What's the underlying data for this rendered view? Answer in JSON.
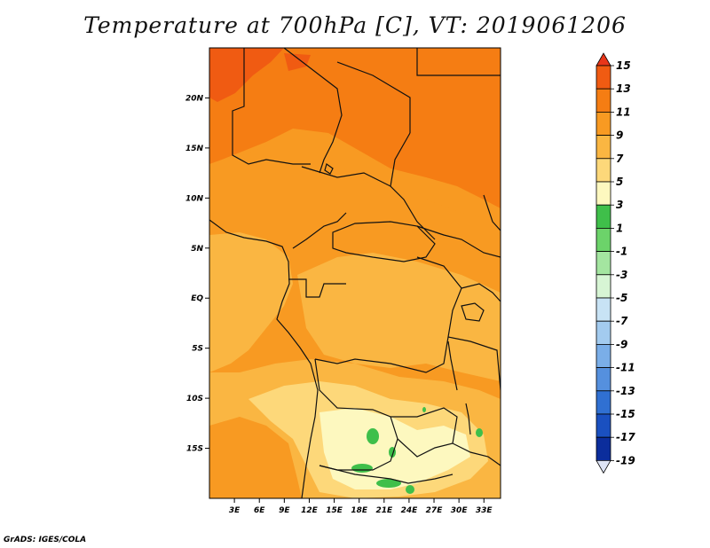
{
  "title": "Temperature at 700hPa [C], VT: 2019061206",
  "footer": "GrADS: IGES/COLA",
  "map": {
    "lon_range": [
      0,
      35
    ],
    "lat_range": [
      -20,
      25
    ],
    "lon_ticks": [
      "3E",
      "6E",
      "9E",
      "12E",
      "15E",
      "18E",
      "21E",
      "24E",
      "27E",
      "30E",
      "33E"
    ],
    "lat_ticks": [
      "20N",
      "15N",
      "10N",
      "5N",
      "EQ",
      "5S",
      "10S",
      "15S"
    ]
  },
  "colorbar": {
    "levels": [
      "15",
      "13",
      "11",
      "9",
      "7",
      "5",
      "3",
      "1",
      "-1",
      "-3",
      "-5",
      "-7",
      "-9",
      "-11",
      "-13",
      "-15",
      "-17",
      "-19"
    ],
    "colors": [
      "#e8361a",
      "#f05b12",
      "#f57d13",
      "#f89a22",
      "#fab642",
      "#fdd87a",
      "#fdf8bf",
      "#3fbf4a",
      "#6cd36a",
      "#a4e5a0",
      "#d7f5d4",
      "#c8e3f5",
      "#a3cbef",
      "#7aaee8",
      "#5590de",
      "#3070d2",
      "#1a50c0",
      "#0b2d9c",
      "#081a6e"
    ]
  }
}
